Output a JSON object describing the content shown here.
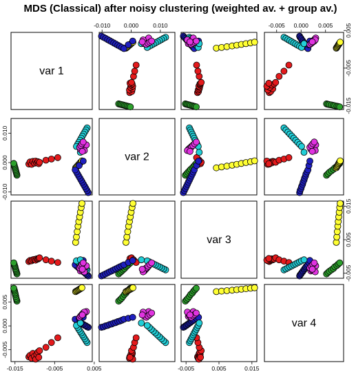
{
  "chart_data": {
    "type": "scatter",
    "subtype": "pairs-matrix",
    "title": "MDS (Classical) after noisy clustering (weighted av. + group av.)",
    "variables": [
      "var 1",
      "var 2",
      "var 3",
      "var 4"
    ],
    "ranges": [
      [
        -0.016,
        0.0045
      ],
      [
        -0.011,
        0.015
      ],
      [
        -0.0065,
        0.0165
      ],
      [
        -0.0075,
        0.0087
      ]
    ],
    "ticks": [
      [
        "-0.015",
        "-0.005",
        "0.005"
      ],
      [
        "-0.010",
        "0.000",
        "0.010"
      ],
      [
        "-0.005",
        "0.005",
        "0.015"
      ],
      [
        "-0.005",
        "0.000",
        "0.005"
      ]
    ],
    "tick_values": [
      [
        -0.015,
        -0.005,
        0.005
      ],
      [
        -0.01,
        0.0,
        0.01
      ],
      [
        -0.005,
        0.005,
        0.015
      ],
      [
        -0.005,
        0.0,
        0.005
      ]
    ],
    "axis_sides": {
      "top": [
        1,
        3
      ],
      "right": [
        0,
        2
      ],
      "bottom": [
        0,
        2
      ],
      "left": [
        1,
        3
      ]
    },
    "grid": false,
    "legend": "none",
    "groups": [
      {
        "color": "#e41a1c",
        "points": [
          [
            -0.0115,
            -0.0005,
            -0.0015,
            -0.0065
          ],
          [
            -0.0112,
            0.0002,
            -0.0012,
            -0.0062
          ],
          [
            -0.0108,
            -0.0006,
            -0.0013,
            -0.0068
          ],
          [
            -0.0105,
            0.0004,
            -0.001,
            -0.0058
          ],
          [
            -0.0101,
            -0.0002,
            -0.0009,
            -0.0064
          ],
          [
            -0.0098,
            0.0005,
            -0.0011,
            -0.007
          ],
          [
            -0.0095,
            -0.0001,
            -0.0007,
            -0.006
          ],
          [
            -0.0092,
            0.0003,
            -0.0008,
            -0.0055
          ],
          [
            -0.009,
            -0.0004,
            -0.0006,
            -0.0066
          ],
          [
            -0.0088,
            0.0001,
            -0.0004,
            -0.0052
          ],
          [
            -0.0072,
            0.0008,
            -0.001,
            -0.0045
          ],
          [
            -0.0058,
            0.0012,
            -0.0014,
            -0.0035
          ],
          [
            -0.0042,
            0.0017,
            -0.0018,
            -0.0025
          ]
        ]
      },
      {
        "color": "#2ca02c",
        "points": [
          [
            -0.0145,
            -0.0043,
            -0.0052,
            0.0052
          ],
          [
            -0.0146,
            -0.0038,
            -0.0048,
            0.0055
          ],
          [
            -0.0147,
            -0.0033,
            -0.0044,
            0.0058
          ],
          [
            -0.0148,
            -0.0028,
            -0.004,
            0.0062
          ],
          [
            -0.0149,
            -0.0023,
            -0.0036,
            0.0066
          ],
          [
            -0.015,
            -0.0018,
            -0.0031,
            0.0069
          ],
          [
            -0.0151,
            -0.0013,
            -0.0027,
            0.0073
          ],
          [
            -0.0152,
            -0.0008,
            -0.0023,
            0.0076
          ],
          [
            -0.0153,
            -0.0003,
            -0.0019,
            0.0079
          ]
        ]
      },
      {
        "color": "#ffff33",
        "points": [
          [
            0.0003,
            -0.0018,
            0.0042,
            0.0072
          ],
          [
            0.0005,
            -0.0015,
            0.0058,
            0.0073
          ],
          [
            0.0007,
            -0.0012,
            0.0074,
            0.0074
          ],
          [
            0.0009,
            -0.0009,
            0.009,
            0.0075
          ],
          [
            0.0011,
            -0.0006,
            0.0104,
            0.0076
          ],
          [
            0.0013,
            -0.0003,
            0.0118,
            0.0077
          ],
          [
            0.0015,
            0.0,
            0.0132,
            0.0078
          ],
          [
            0.0017,
            0.0003,
            0.0146,
            0.0079
          ],
          [
            0.0019,
            0.0006,
            0.0158,
            0.008
          ]
        ]
      },
      {
        "color": "#1f1fbf",
        "points": [
          [
            0.0035,
            -0.0102,
            -0.0058,
            -0.0003
          ],
          [
            0.0032,
            -0.0095,
            -0.0055,
            -0.0002
          ],
          [
            0.0029,
            -0.0088,
            -0.0052,
            0.0
          ],
          [
            0.0026,
            -0.0081,
            -0.0049,
            0.0001
          ],
          [
            0.0023,
            -0.0074,
            -0.0046,
            0.0003
          ],
          [
            0.002,
            -0.0067,
            -0.0043,
            0.0004
          ],
          [
            0.0017,
            -0.006,
            -0.004,
            0.0006
          ],
          [
            0.0014,
            -0.0053,
            -0.0037,
            0.0007
          ],
          [
            0.0011,
            -0.0046,
            -0.0034,
            0.0009
          ],
          [
            0.0008,
            -0.0039,
            -0.0031,
            0.001
          ],
          [
            0.0005,
            -0.0032,
            -0.0028,
            0.0012
          ],
          [
            0.0002,
            -0.0025,
            -0.0025,
            0.0014
          ],
          [
            0.0012,
            -0.001,
            -0.0018,
            0.0016
          ],
          [
            0.0022,
            0.0005,
            -0.0012,
            0.0018
          ]
        ]
      },
      {
        "color": "#22cfd8",
        "points": [
          [
            0.0032,
            0.0118,
            -0.004,
            -0.0035
          ],
          [
            0.0029,
            0.0111,
            -0.0037,
            -0.0031
          ],
          [
            0.0026,
            0.0104,
            -0.0034,
            -0.0027
          ],
          [
            0.0023,
            0.0097,
            -0.0031,
            -0.0023
          ],
          [
            0.002,
            0.009,
            -0.0028,
            -0.0019
          ],
          [
            0.0017,
            0.0083,
            -0.0025,
            -0.0015
          ],
          [
            0.0014,
            0.0076,
            -0.0022,
            -0.0011
          ],
          [
            0.0011,
            0.0069,
            -0.0019,
            -0.0007
          ],
          [
            0.0008,
            0.0062,
            -0.0016,
            -0.0003
          ],
          [
            0.0005,
            0.0055,
            -0.0013,
            0.0001
          ],
          [
            0.0015,
            0.0035,
            -0.001,
            0.0006
          ]
        ]
      },
      {
        "color": "#e033e0",
        "points": [
          [
            0.0015,
            0.0045,
            -0.0043,
            0.002
          ],
          [
            0.0018,
            0.0048,
            -0.004,
            0.0022
          ],
          [
            0.0021,
            0.0051,
            -0.0037,
            0.0024
          ],
          [
            0.0024,
            0.0054,
            -0.0034,
            0.0026
          ],
          [
            0.0027,
            0.0057,
            -0.0031,
            0.0028
          ],
          [
            0.003,
            0.006,
            -0.0028,
            0.003
          ],
          [
            0.0013,
            0.0052,
            -0.0034,
            0.0018
          ],
          [
            0.0016,
            0.0058,
            -0.0029,
            0.0021
          ],
          [
            0.0019,
            0.0064,
            -0.0024,
            0.0024
          ],
          [
            0.0022,
            0.007,
            -0.0019,
            0.0027
          ],
          [
            0.0025,
            0.0041,
            -0.0046,
            0.0029
          ],
          [
            0.002,
            0.0038,
            -0.0038,
            0.0023
          ]
        ]
      }
    ]
  }
}
